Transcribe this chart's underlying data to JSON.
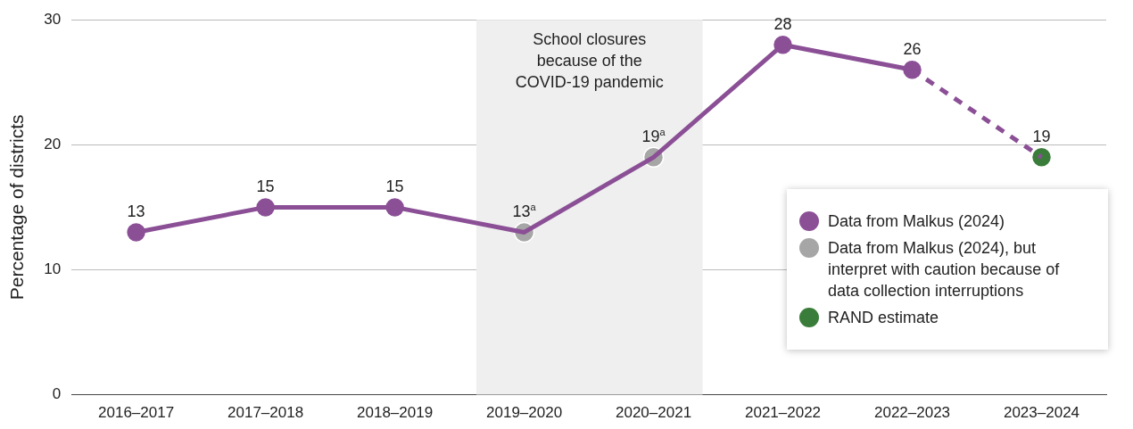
{
  "chart_data": {
    "type": "line",
    "ylabel": "Percentage of districts",
    "categories": [
      "2016–2017",
      "2017–2018",
      "2018–2019",
      "2019–2020",
      "2020–2021",
      "2021–2022",
      "2022–2023",
      "2023–2024"
    ],
    "series": [
      {
        "type": "line",
        "color": "#8b4f96",
        "marker": "none",
        "line_style": "solid",
        "values": [
          13,
          15,
          15,
          13,
          19,
          28,
          26,
          null
        ]
      },
      {
        "type": "line",
        "color": "#8b4f96",
        "marker": "none",
        "line_style": "dashed",
        "values": [
          null,
          null,
          null,
          null,
          null,
          null,
          26,
          19
        ]
      },
      {
        "type": "scatter",
        "name": "Data from Malkus (2024)",
        "color": "#8b4f96",
        "marker": "circle",
        "values": [
          13,
          15,
          15,
          null,
          null,
          28,
          26,
          null
        ],
        "value_labels": [
          "13",
          "15",
          "15",
          null,
          null,
          "28",
          "26",
          null
        ]
      },
      {
        "type": "scatter",
        "name": "Data from Malkus (2024), but interpret with caution because of data collection interruptions",
        "color": "#a6a6a6",
        "marker": "circle",
        "values": [
          null,
          null,
          null,
          13,
          19,
          null,
          null,
          null
        ],
        "value_labels": [
          null,
          null,
          null,
          "13$^{a}$",
          "19$^{a}$",
          null,
          null,
          null
        ]
      },
      {
        "type": "scatter",
        "name": "RAND estimate",
        "color": "#3a7d3a",
        "marker": "circle",
        "values": [
          null,
          null,
          null,
          null,
          null,
          null,
          null,
          19
        ],
        "value_labels": [
          null,
          null,
          null,
          null,
          null,
          null,
          null,
          "19"
        ]
      }
    ],
    "bands": [
      {
        "axis": "x",
        "from": "2019–2020",
        "to": "2020–2021",
        "label": "School closures because of the COVID-19 pandemic",
        "color": "#efefef"
      }
    ],
    "ylim": [
      0,
      30
    ],
    "yticks": [
      0,
      10,
      20,
      30
    ],
    "grid": "y",
    "legend": "right"
  }
}
